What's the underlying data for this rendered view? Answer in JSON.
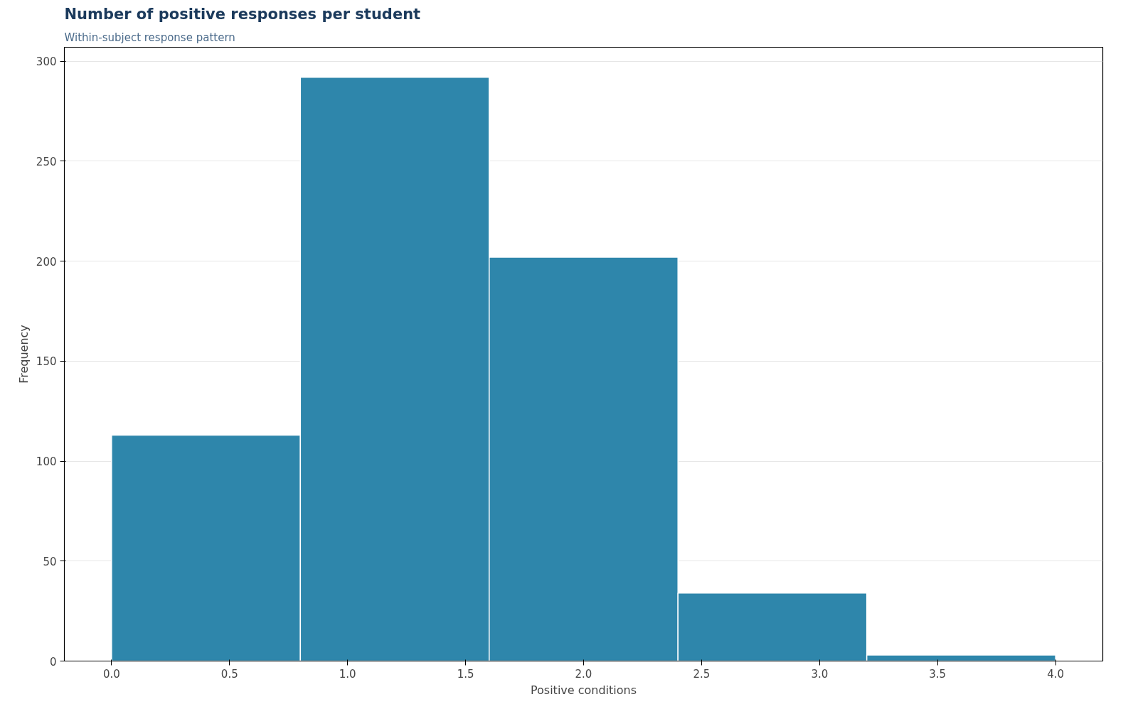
{
  "chart_data": {
    "type": "histogram",
    "title": "Number of positive responses per student",
    "subtitle": "Within-subject response pattern",
    "xlabel": "Positive conditions",
    "ylabel": "Frequency",
    "bins": [
      0,
      0.8,
      1.6,
      2.4,
      3.2,
      4.0
    ],
    "values": [
      113,
      292,
      202,
      34,
      3
    ],
    "color": "#2e86ab",
    "xlim": [
      -0.2,
      4.2
    ],
    "xticks": [
      {
        "value": 0,
        "label": "0.0"
      },
      {
        "value": 0.5,
        "label": "0.5"
      },
      {
        "value": 1,
        "label": "1.0"
      },
      {
        "value": 1.5,
        "label": "1.5"
      },
      {
        "value": 2,
        "label": "2.0"
      },
      {
        "value": 2.5,
        "label": "2.5"
      },
      {
        "value": 3,
        "label": "3.0"
      },
      {
        "value": 3.5,
        "label": "3.5"
      },
      {
        "value": 4,
        "label": "4.0"
      }
    ],
    "ylim": [
      0,
      307
    ],
    "yticks": [
      0,
      50,
      100,
      150,
      200,
      250,
      300
    ],
    "grid": "y"
  }
}
